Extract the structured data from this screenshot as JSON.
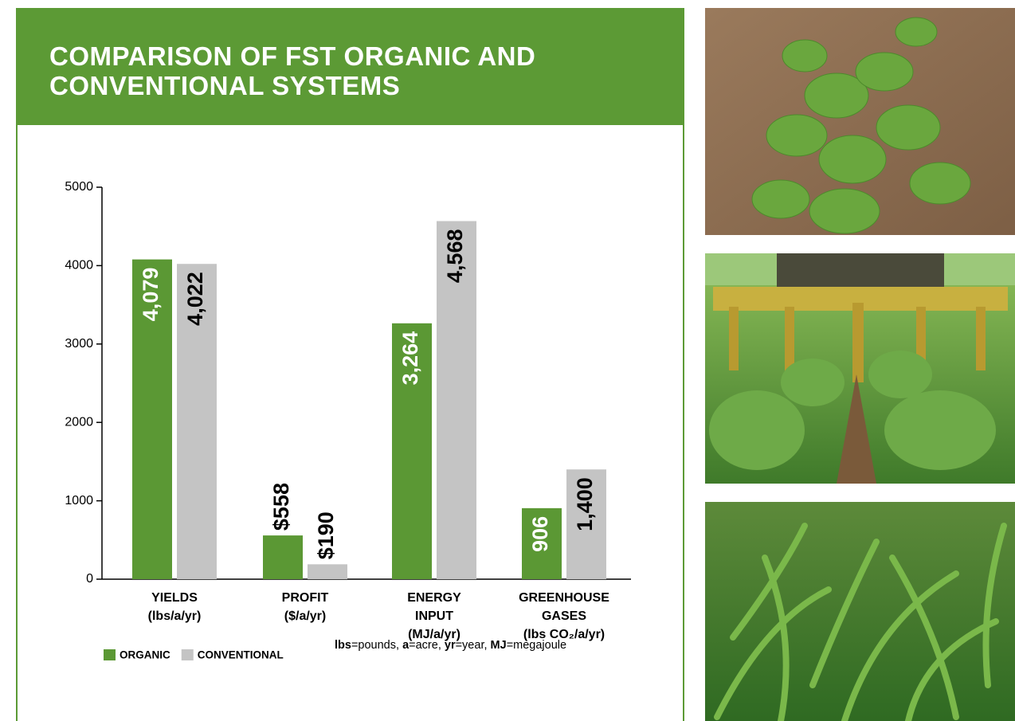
{
  "chart_data": {
    "type": "bar",
    "title": "COMPARISON OF FST ORGANIC AND CONVENTIONAL SYSTEMS",
    "categories": [
      [
        "YIELDS",
        "(lbs/a/yr)"
      ],
      [
        "PROFIT",
        "($/a/yr)"
      ],
      [
        "ENERGY",
        "INPUT",
        "(MJ/a/yr)"
      ],
      [
        "GREENHOUSE",
        "GASES",
        "(lbs CO₂/a/yr)"
      ]
    ],
    "series": [
      {
        "name": "ORGANIC",
        "color": "#5b9834",
        "values": [
          4079,
          558,
          3264,
          906
        ],
        "value_labels": [
          "4,079",
          "$558",
          "3,264",
          "906"
        ]
      },
      {
        "name": "CONVENTIONAL",
        "color": "#c4c4c4",
        "values": [
          4022,
          190,
          4568,
          1400
        ],
        "value_labels": [
          "4,022",
          "$190",
          "4,568",
          "1,400"
        ]
      }
    ],
    "ylim": [
      0,
      5000
    ],
    "yticks": [
      0,
      1000,
      2000,
      3000,
      4000,
      5000
    ],
    "note": [
      "lbs",
      "=pounds, ",
      "a",
      "=acre, ",
      "yr",
      "=year, ",
      "MJ",
      "=megajoule"
    ]
  }
}
